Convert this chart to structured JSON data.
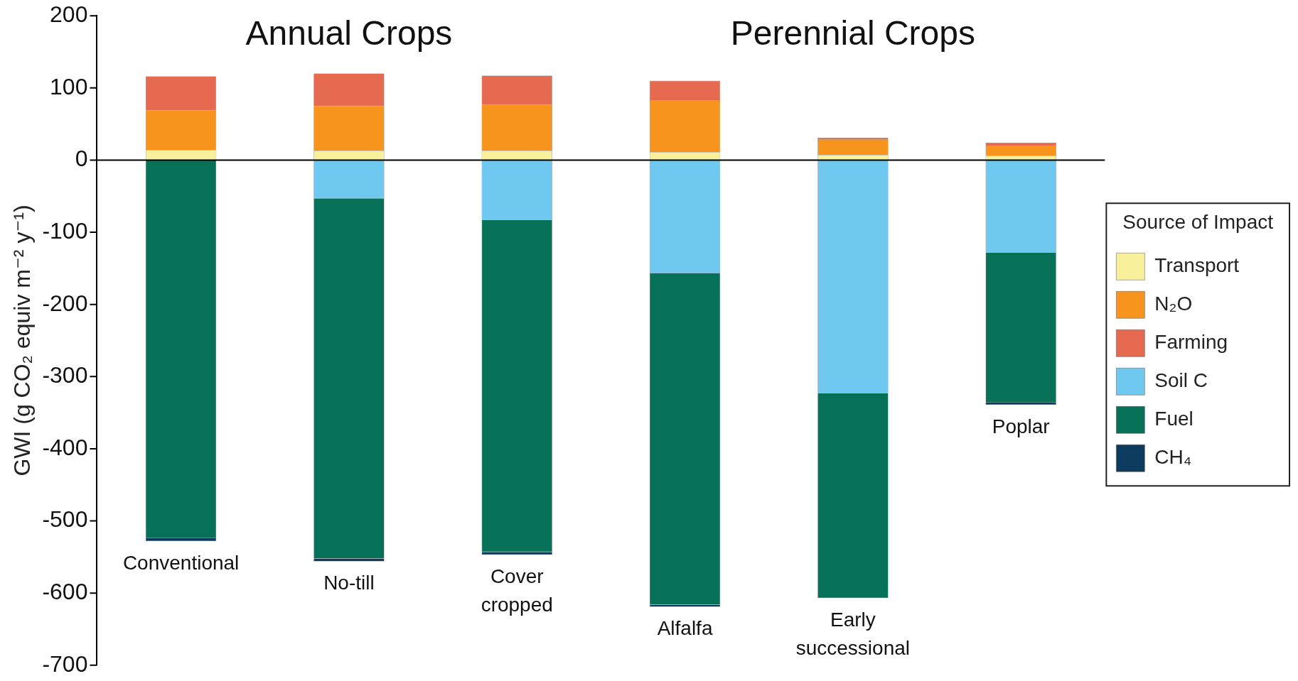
{
  "chart_data": {
    "type": "bar",
    "stacked": true,
    "ylabel": "GWI (g CO₂ equiv m⁻² y⁻¹)",
    "legend_title": "Source of Impact",
    "legend": "right",
    "grid": false,
    "tick_labels": "y",
    "annotations": [
      "Annual Crops",
      "Perennial Crops"
    ],
    "ref_lines": [
      {
        "axis": "y",
        "value": 0,
        "color": "#000000"
      }
    ],
    "categories": [
      "Conventional",
      "No-till",
      "Cover cropped",
      "Alfalfa",
      "Early successional",
      "Poplar"
    ],
    "ylim": [
      -700,
      200
    ],
    "yticks": [
      200,
      100,
      0,
      -100,
      -200,
      -300,
      -400,
      -500,
      -600,
      -700
    ],
    "series": [
      {
        "name": "Transport",
        "color": "#f8f09a",
        "values": [
          14,
          13,
          13,
          11,
          7,
          6
        ]
      },
      {
        "name": "N₂O",
        "color": "#f7941d",
        "values": [
          55,
          62,
          64,
          72,
          22,
          14
        ]
      },
      {
        "name": "Farming",
        "color": "#e66a50",
        "values": [
          47,
          45,
          40,
          27,
          2,
          4
        ]
      },
      {
        "name": "Soil C",
        "color": "#6ec8ef",
        "values": [
          0,
          -53,
          -83,
          -157,
          -323,
          -128
        ]
      },
      {
        "name": "Fuel",
        "color": "#067157",
        "values": [
          -524,
          -499,
          -460,
          -459,
          -284,
          -208
        ]
      },
      {
        "name": "CH₄",
        "color": "#0d3b5e",
        "values": [
          -4,
          -4,
          -4,
          -3,
          0,
          -3
        ]
      }
    ]
  }
}
